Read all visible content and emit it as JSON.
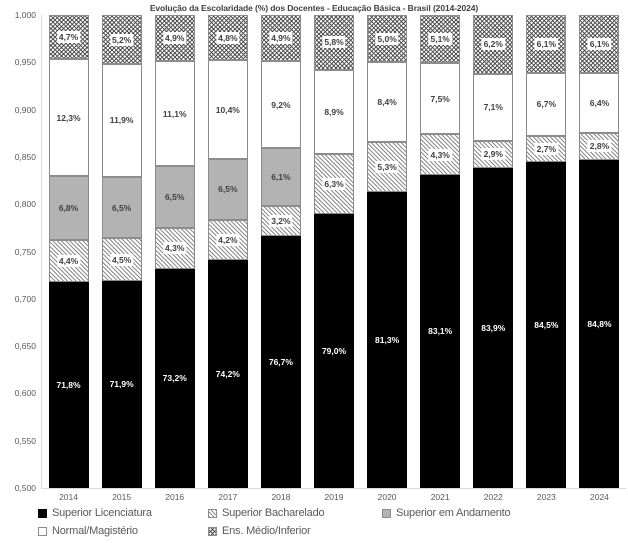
{
  "chart_data": {
    "type": "bar",
    "stacked": true,
    "title": "Evolução da Escolaridade (%) dos Docentes - Educação Básica - Brasil (2014-2024)",
    "categories": [
      "2014",
      "2015",
      "2016",
      "2017",
      "2018",
      "2019",
      "2020",
      "2021",
      "2022",
      "2023",
      "2024"
    ],
    "series": [
      {
        "name": "Superior Licenciatura",
        "pattern": "solid-black",
        "values": [
          71.8,
          71.9,
          73.2,
          74.2,
          76.7,
          79.0,
          81.3,
          83.1,
          83.9,
          84.5,
          84.8
        ],
        "labels": [
          "71,8%",
          "71,9%",
          "73,2%",
          "74,2%",
          "76,7%",
          "79,0%",
          "81,3%",
          "83,1%",
          "83,9%",
          "84,5%",
          "84,8%"
        ]
      },
      {
        "name": "Superior Bacharelado",
        "pattern": "hatch-light",
        "values": [
          4.4,
          4.5,
          4.3,
          4.2,
          3.2,
          6.3,
          5.3,
          4.3,
          2.9,
          2.7,
          2.8
        ],
        "labels": [
          "4,4%",
          "4,5%",
          "4,3%",
          "4,2%",
          "3,2%",
          "6,3%",
          "5,3%",
          "4,3%",
          "2,9%",
          "2,7%",
          "2,8%"
        ]
      },
      {
        "name": "Superior em Andamento",
        "pattern": "solid-gray",
        "values": [
          6.8,
          6.5,
          6.5,
          6.5,
          6.1,
          0,
          0,
          0,
          0,
          0,
          0
        ],
        "labels": [
          "6,8%",
          "6,5%",
          "6,5%",
          "6,5%",
          "6,1%",
          "",
          "",
          "",
          "",
          "",
          ""
        ]
      },
      {
        "name": "Normal/Magistério",
        "pattern": "solid-white",
        "values": [
          12.3,
          11.9,
          11.1,
          10.4,
          9.2,
          8.9,
          8.4,
          7.5,
          7.1,
          6.7,
          6.4
        ],
        "labels": [
          "12,3%",
          "11,9%",
          "11,1%",
          "10,4%",
          "9,2%",
          "8,9%",
          "8,4%",
          "7,5%",
          "7,1%",
          "6,7%",
          "6,4%"
        ]
      },
      {
        "name": "Ens. Médio/Inferior",
        "pattern": "hatch-dark",
        "values": [
          4.7,
          5.2,
          4.9,
          4.8,
          4.9,
          5.8,
          5.0,
          5.1,
          6.2,
          6.1,
          6.1
        ],
        "labels": [
          "4,7%",
          "5,2%",
          "4,9%",
          "4,8%",
          "4,9%",
          "5,8%",
          "5,0%",
          "5,1%",
          "6,2%",
          "6,1%",
          "6,1%"
        ]
      }
    ],
    "ylim": [
      0.5,
      1.0
    ],
    "ytick_labels": [
      "1,000",
      "0,950",
      "0,900",
      "0,850",
      "0,800",
      "0,750",
      "0,700",
      "0,650",
      "0,600",
      "0,550",
      "0,500"
    ],
    "grid": false,
    "legend_position": "bottom",
    "colors": {
      "bar_black": "#000000",
      "bar_gray": "#b3b3b3",
      "bar_white": "#ffffff",
      "hatch_line_light": "#8c8c8c",
      "hatch_line_dark": "#404040",
      "axis_text": "#595959",
      "title_text": "#404040"
    }
  }
}
